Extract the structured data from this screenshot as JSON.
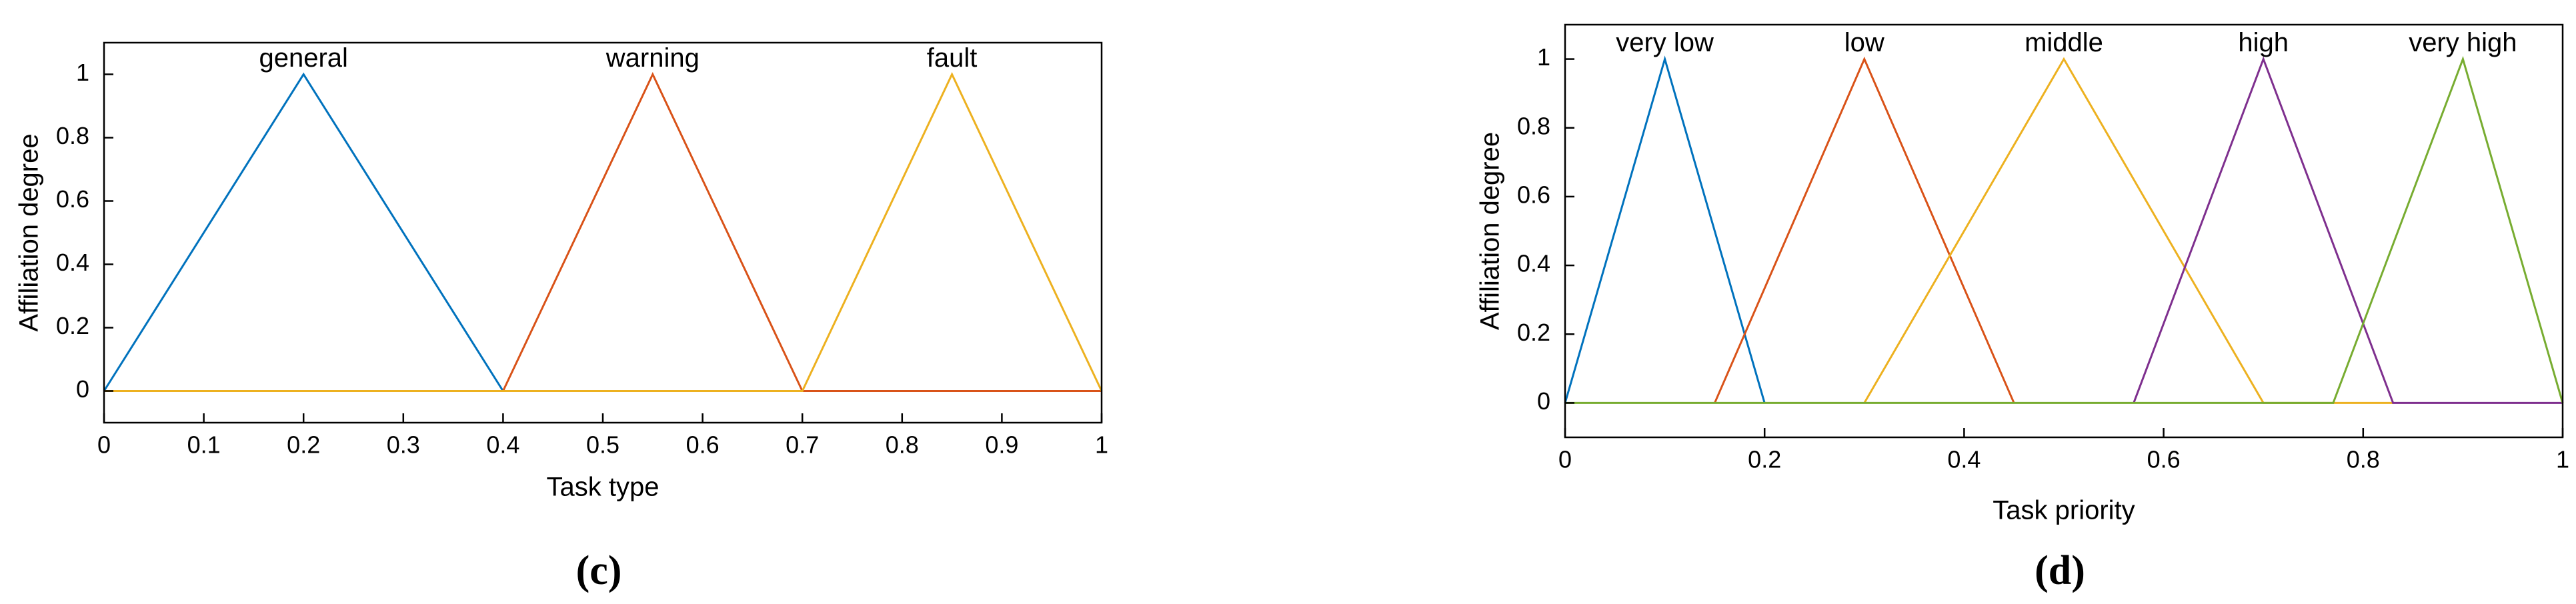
{
  "chart_data": [
    {
      "type": "line",
      "xlabel": "Task type",
      "ylabel": "Affiliation degree",
      "caption": "(c)",
      "xlim": [
        0,
        1
      ],
      "ylim": [
        -0.1,
        1.1
      ],
      "xticks": [
        0,
        0.1,
        0.2,
        0.3,
        0.4,
        0.5,
        0.6,
        0.7,
        0.8,
        0.9,
        1
      ],
      "yticks": [
        0,
        0.2,
        0.4,
        0.6,
        0.8,
        1
      ],
      "series": [
        {
          "name": "general",
          "color": "#0072bd",
          "x": [
            0,
            0.2,
            0.4,
            1
          ],
          "values": [
            0,
            1,
            0,
            0
          ]
        },
        {
          "name": "warning",
          "color": "#d95319",
          "x": [
            0,
            0.4,
            0.55,
            0.7,
            1
          ],
          "values": [
            0,
            0,
            1,
            0,
            0
          ]
        },
        {
          "name": "fault",
          "color": "#edb120",
          "x": [
            0,
            0.7,
            0.85,
            1
          ],
          "values": [
            0,
            0,
            1,
            0
          ]
        }
      ]
    },
    {
      "type": "line",
      "xlabel": "Task priority",
      "ylabel": "Affiliation degree",
      "caption": "(d)",
      "xlim": [
        0,
        1
      ],
      "ylim": [
        -0.1,
        1.1
      ],
      "xticks": [
        0,
        0.2,
        0.4,
        0.6,
        0.8,
        1
      ],
      "yticks": [
        0,
        0.2,
        0.4,
        0.6,
        0.8,
        1
      ],
      "series": [
        {
          "name": "very low",
          "color": "#0072bd",
          "x": [
            0,
            0.1,
            0.2
          ],
          "values": [
            0,
            1,
            0
          ]
        },
        {
          "name": "low",
          "color": "#d95319",
          "x": [
            0.15,
            0.3,
            0.45
          ],
          "values": [
            0,
            1,
            0
          ]
        },
        {
          "name": "middle",
          "color": "#edb120",
          "x": [
            0.3,
            0.5,
            0.7,
            0.83
          ],
          "values": [
            0,
            1,
            0,
            0
          ]
        },
        {
          "name": "high",
          "color": "#7e2f8e",
          "x": [
            0.57,
            0.7,
            0.83,
            1
          ],
          "values": [
            0,
            1,
            0,
            0
          ]
        },
        {
          "name": "very high",
          "color": "#77ac30",
          "x": [
            0,
            0.77,
            0.9,
            1
          ],
          "values": [
            0,
            0,
            1,
            0
          ]
        }
      ]
    }
  ]
}
